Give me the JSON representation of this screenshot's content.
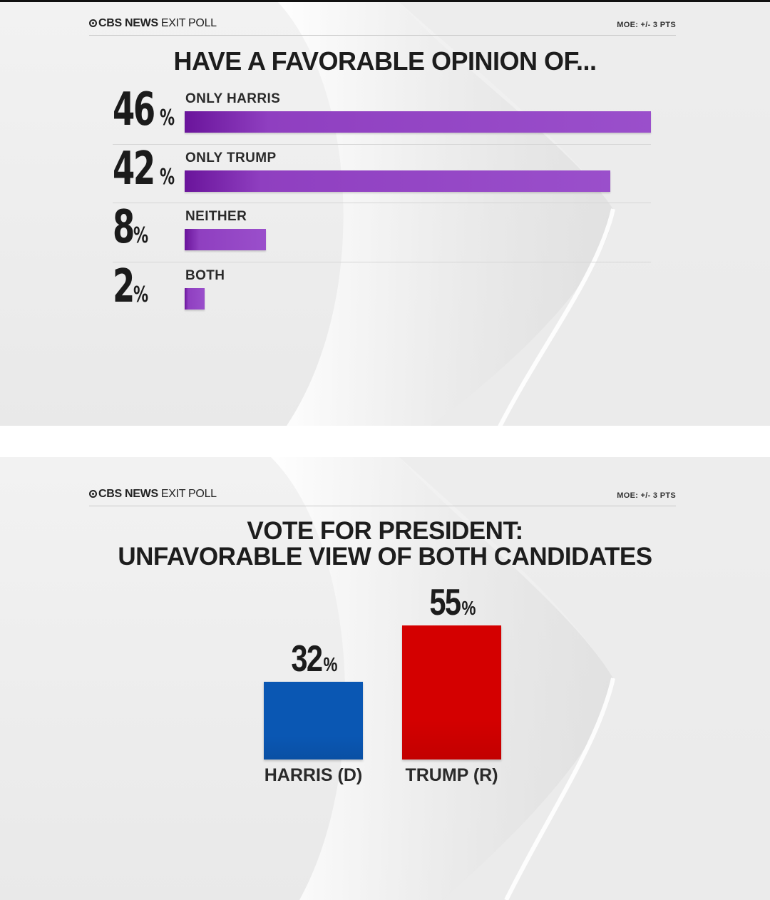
{
  "colors": {
    "harris": "#0a57b3",
    "trump": "#d40000",
    "purple": "#9a4fcb"
  },
  "top_panel": {
    "brand_bold": "CBS NEWS",
    "brand_light": "EXIT POLL",
    "moe": "MOE: +/- 3 PTS",
    "pct_symbol": "%"
  },
  "bottom_panel": {
    "brand_bold": "CBS NEWS",
    "brand_light": "EXIT POLL",
    "moe": "MOE: +/- 3 PTS",
    "pct_symbol": "%"
  },
  "chart_data": [
    {
      "type": "bar",
      "orientation": "horizontal",
      "title": "HAVE A FAVORABLE OPINION OF...",
      "categories": [
        "ONLY HARRIS",
        "ONLY TRUMP",
        "NEITHER",
        "BOTH"
      ],
      "values": [
        46,
        42,
        8,
        2
      ],
      "xlim": [
        0,
        46
      ]
    },
    {
      "type": "bar",
      "orientation": "vertical",
      "title": "VOTE FOR PRESIDENT: UNFAVORABLE VIEW OF BOTH CANDIDATES",
      "title_line1": "VOTE FOR PRESIDENT:",
      "title_line2": "UNFAVORABLE VIEW OF BOTH CANDIDATES",
      "categories": [
        "HARRIS (D)",
        "TRUMP (R)"
      ],
      "values": [
        32,
        55
      ],
      "ylim": [
        0,
        55
      ]
    }
  ]
}
